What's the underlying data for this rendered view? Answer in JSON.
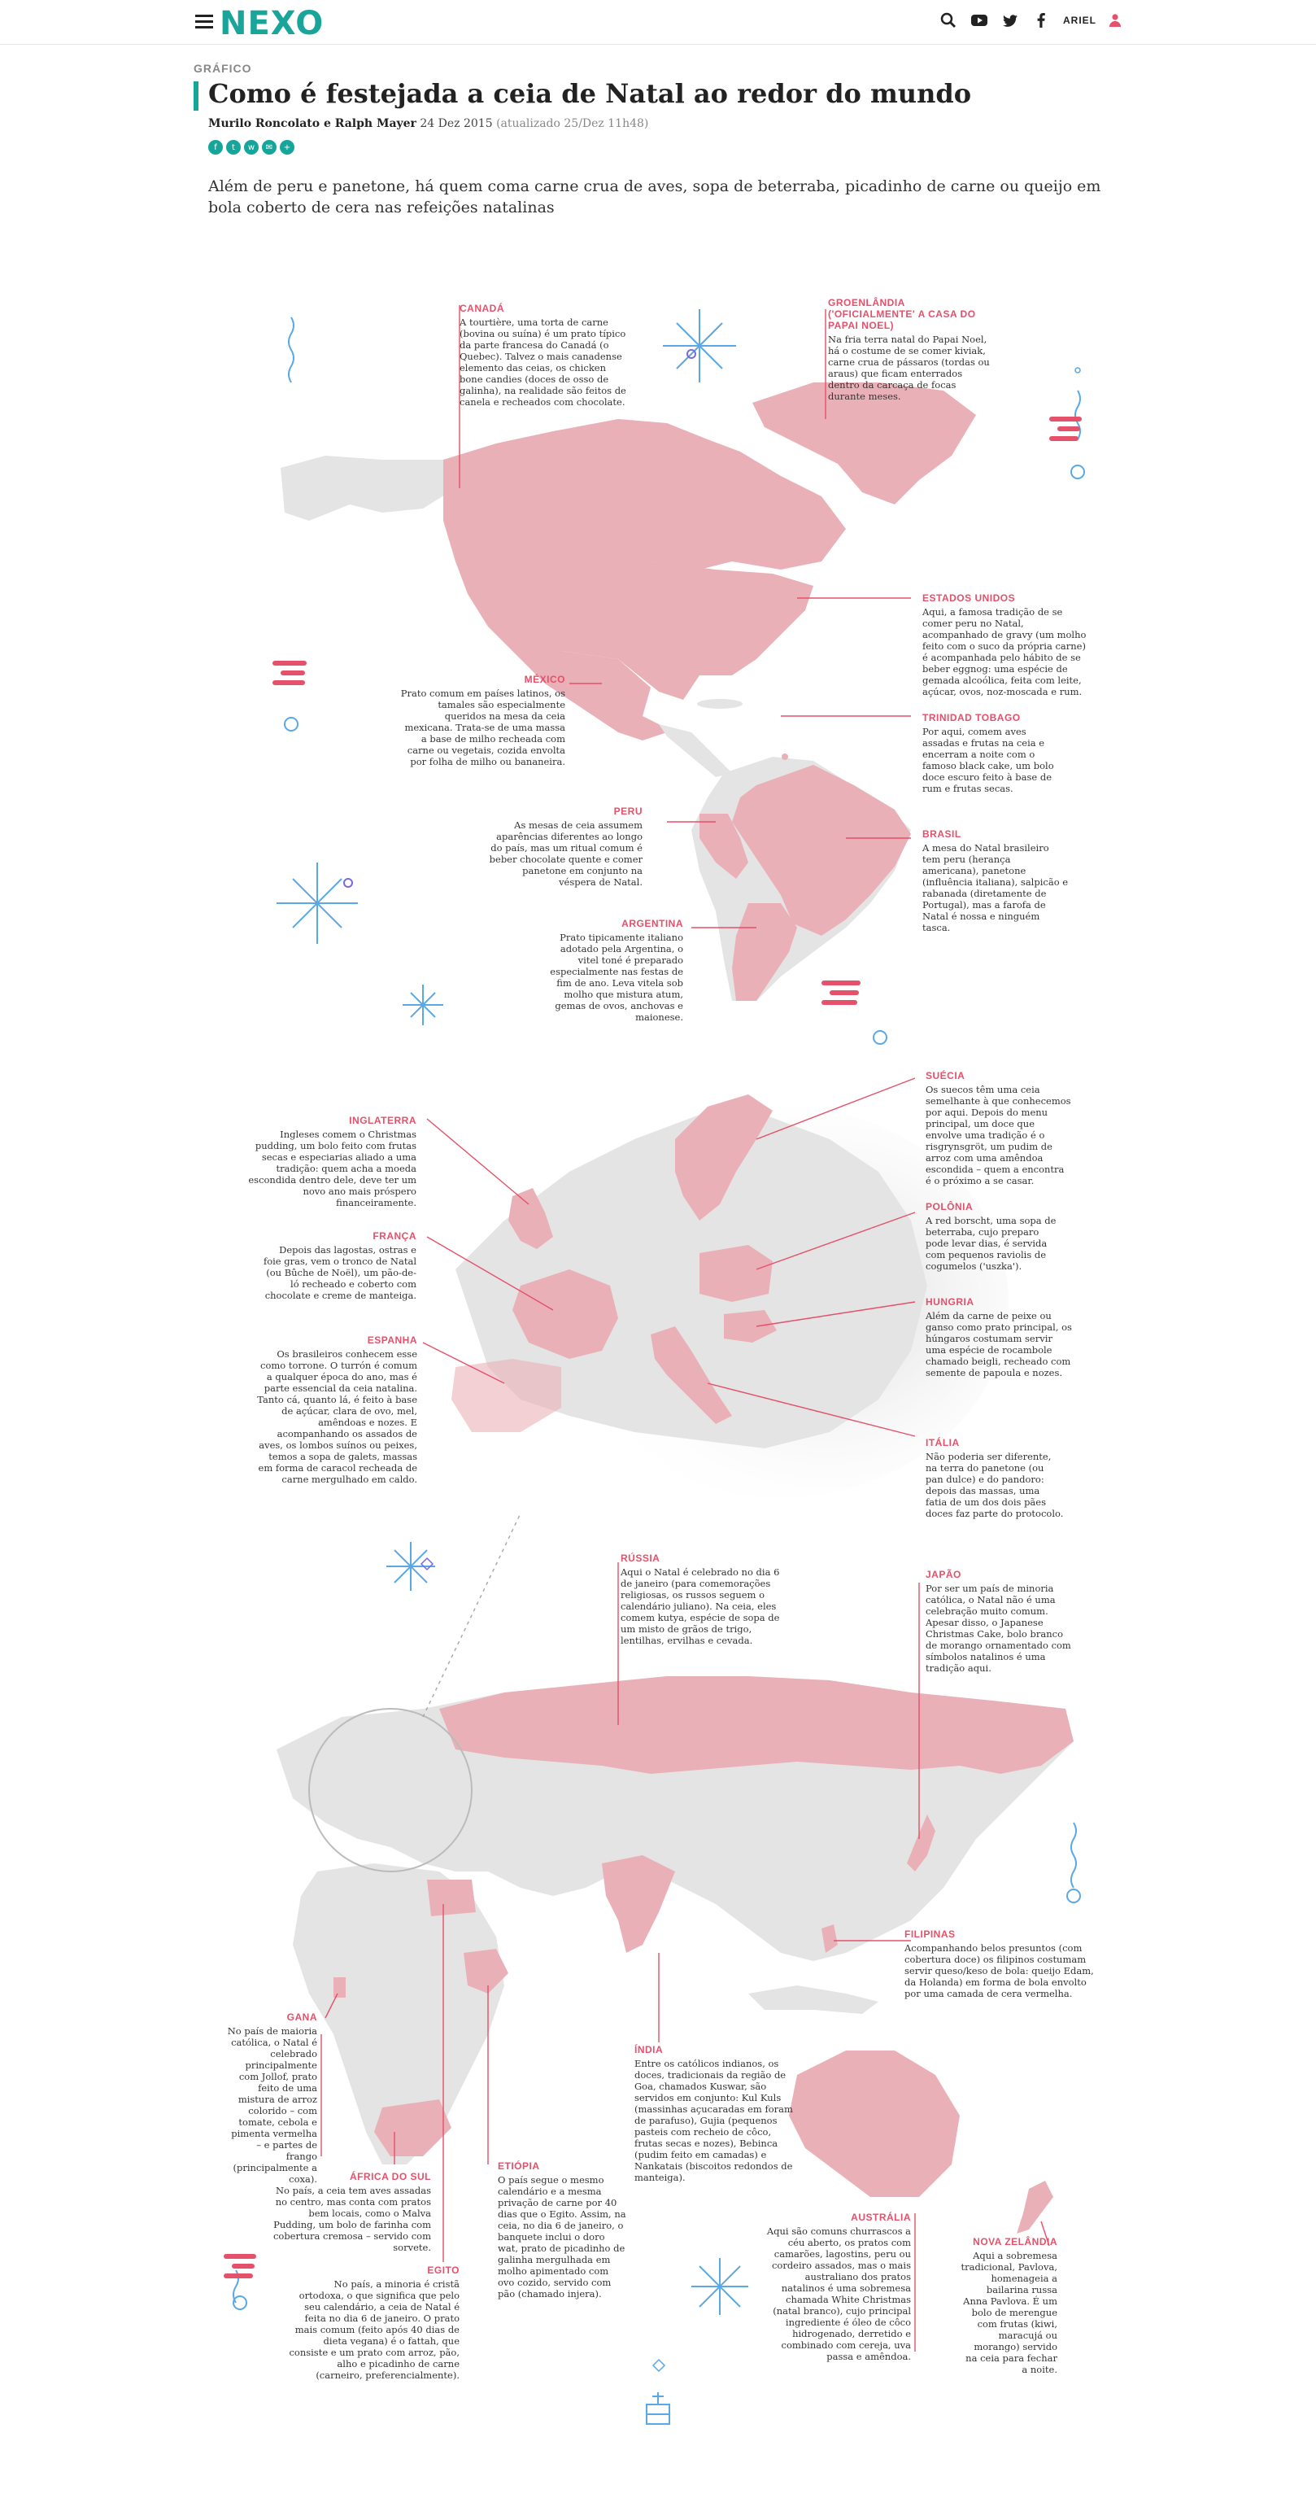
{
  "header": {
    "logo": "NEXO",
    "user_name": "ARIEL",
    "icons": [
      "menu-icon",
      "search-icon",
      "youtube-icon",
      "twitter-icon",
      "facebook-icon",
      "user-icon"
    ]
  },
  "article": {
    "section": "GRÁFICO",
    "title": "Como é festejada a ceia de Natal ao redor do mundo",
    "authors": "Murilo Roncolato e Ralph Mayer",
    "date": "24 Dez 2015",
    "updated": "(atualizado 25/Dez 11h48)",
    "share_icons": [
      "facebook-icon",
      "twitter-icon",
      "whatsapp-icon",
      "email-icon",
      "plus-icon"
    ],
    "lead": "Além de peru e panetone, há quem coma carne crua de aves, sopa de beterraba, picadinho de carne ou queijo em bola coberto de cera nas refeições natalinas"
  },
  "colors": {
    "accent": "#16a59a",
    "highlight": "#e5506a",
    "country_fill": "#eab0b7",
    "land": "#e4e4e4"
  },
  "notes": {
    "canada": {
      "title": "CANADÁ",
      "text": "A tourtière, uma torta de carne (bovina ou suína) é um prato típico da parte francesa do Canadá (o Quebec). Talvez o mais canadense elemento das ceias, os chicken bone candies (doces de osso de galinha), na realidade são feitos de canela e recheados com chocolate."
    },
    "greenland": {
      "title": "GROENLÂNDIA ('OFICIALMENTE' A CASA DO PAPAI NOEL)",
      "text": "Na fria terra natal do Papai Noel, há o costume de se comer kiviak, carne crua de pássaros (tordas ou araus) que ficam enterrados dentro da carcaça de focas durante meses."
    },
    "usa": {
      "title": "ESTADOS UNIDOS",
      "text": "Aqui, a famosa tradição de se comer peru no Natal, acompanhado de gravy (um molho feito com o suco da própria carne) é acompanhada pelo hábito de se beber eggnog: uma espécie de gemada alcoólica, feita com leite, açúcar, ovos, noz-moscada e rum."
    },
    "mexico": {
      "title": "MÉXICO",
      "text": "Prato comum em países latinos, os tamales são especialmente queridos na mesa da ceia mexicana. Trata-se de uma massa a base de milho recheada com carne ou vegetais, cozida envolta por folha de milho ou bananeira."
    },
    "trinidad": {
      "title": "TRINIDAD TOBAGO",
      "text": "Por aqui, comem aves assadas e frutas na ceia e encerram a noite com o famoso black cake, um bolo doce escuro feito à base de rum e frutas secas."
    },
    "peru": {
      "title": "PERU",
      "text": "As mesas de ceia assumem aparências diferentes ao longo do país, mas um ritual comum é beber chocolate quente e comer panetone em conjunto na véspera de Natal."
    },
    "brazil": {
      "title": "BRASIL",
      "text": "A mesa do Natal brasileiro tem peru (herança americana), panetone (influência italiana), salpicão e rabanada (diretamente de Portugal), mas a farofa de Natal é nossa e ninguém tasca."
    },
    "argentina": {
      "title": "ARGENTINA",
      "text": "Prato tipicamente italiano adotado pela Argentina, o vitel toné é preparado especialmente nas festas de fim de ano. Leva vitela sob molho que mistura atum, gemas de ovos, anchovas e maionese."
    },
    "england": {
      "title": "INGLATERRA",
      "text": "Ingleses comem o Christmas pudding, um bolo feito com frutas secas e especiarias aliado a uma tradição: quem acha a moeda escondida dentro dele, deve ter um novo ano mais próspero financeiramente."
    },
    "sweden": {
      "title": "SUÉCIA",
      "text": "Os suecos têm uma ceia semelhante à que conhecemos por aqui. Depois do menu principal, um doce que envolve uma tradição é o risgrynsgröt, um pudim de arroz com uma amêndoa escondida – quem a encontra é o próximo a se casar."
    },
    "france": {
      "title": "FRANÇA",
      "text": "Depois das lagostas, ostras e foie gras, vem o tronco de Natal (ou Bûche de Noël), um pão-de-ló recheado e coberto com chocolate e creme de manteiga."
    },
    "poland": {
      "title": "POLÔNIA",
      "text": "A red borscht, uma sopa de beterraba, cujo preparo pode levar dias, é servida com pequenos raviolis de cogumelos ('uszka')."
    },
    "hungary": {
      "title": "HUNGRIA",
      "text": "Além da carne de peixe ou ganso como prato principal, os húngaros costumam servir uma espécie de rocambole chamado beigli, recheado com semente de papoula e nozes."
    },
    "spain": {
      "title": "ESPANHA",
      "text": "Os brasileiros conhecem esse como torrone. O turrón é comum a qualquer época do ano, mas é parte essencial da ceia natalina. Tanto cá, quanto lá, é feito à base de açúcar, clara de ovo, mel, amêndoas e nozes. E acompanhando os assados de aves, os lombos suínos ou peixes, temos a sopa de galets, massas em forma de caracol recheada de carne mergulhado em caldo."
    },
    "italy": {
      "title": "ITÁLIA",
      "text": "Não poderia ser diferente, na terra do panetone (ou pan dulce) e do pandoro: depois das massas, uma fatia de um dos dois pães doces faz parte do protocolo."
    },
    "russia": {
      "title": "RÚSSIA",
      "text": "Aqui o Natal é celebrado no dia 6 de janeiro (para comemorações religiosas, os russos seguem o calendário juliano). Na ceia, eles comem kutya, espécie de sopa de um misto de grãos de trigo, lentilhas, ervilhas e cevada."
    },
    "japan": {
      "title": "JAPÃO",
      "text": "Por ser um país de minoria católica, o Natal não é uma celebração muito comum. Apesar disso, o Japanese Christmas Cake, bolo branco de morango ornamentado com símbolos natalinos é uma tradição aqui."
    },
    "philippines": {
      "title": "FILIPINAS",
      "text": "Acompanhando belos presuntos (com cobertura doce) os filipinos costumam servir queso/keso de bola: queijo Edam, da Holanda) em forma de bola envolto por uma camada de cera vermelha."
    },
    "ghana": {
      "title": "GANA",
      "text": "No país de maioria católica, o Natal é celebrado principalmente com Jollof, prato feito de uma mistura de arroz colorido – com tomate, cebola e pimenta vermelha – e partes de frango (principalmente a coxa)."
    },
    "india": {
      "title": "ÍNDIA",
      "text": "Entre os católicos indianos, os doces, tradicionais da região de Goa, chamados Kuswar, são servidos em conjunto: Kul Kuls (massinhas açucaradas em foram de parafuso), Gujia (pequenos pasteis com recheio de côco, frutas secas e nozes), Bebinca (pudim feito em camadas) e Nankatais (biscoitos redondos de manteiga)."
    },
    "south_africa": {
      "title": "ÁFRICA DO SUL",
      "text": "No país, a ceia tem aves assadas no centro, mas conta com pratos bem locais, como o Malva Pudding, um bolo de farinha com cobertura cremosa – servido com sorvete."
    },
    "ethiopia": {
      "title": "ETIÓPIA",
      "text": "O país segue o mesmo calendário e a mesma privação de carne por 40 dias que o Egito. Assim, na ceia, no dia 6 de janeiro, o banquete inclui o doro wat, prato de picadinho de galinha mergulhada em molho apimentado com ovo cozido, servido com pão (chamado injera)."
    },
    "australia": {
      "title": "AUSTRÁLIA",
      "text": "Aqui são comuns churrascos a céu aberto, os pratos com camarões, lagostins, peru ou cordeiro assados, mas o mais australiano dos pratos natalinos é uma sobremesa chamada White Christmas (natal branco), cujo principal ingrediente é óleo de côco hidrogenado, derretido e combinado com cereja, uva passa e amêndoa."
    },
    "new_zealand": {
      "title": "NOVA ZELÂNDIA",
      "text": "Aqui a sobremesa tradicional, Pavlova, homenageia a bailarina russa Anna Pavlova. É um bolo de merengue com frutas (kiwi, maracujá ou morango) servido na ceia para fechar a noite."
    },
    "egypt": {
      "title": "EGITO",
      "text": "No país, a minoria é cristã ortodoxa, o que significa que pelo seu calendário, a ceia de Natal é feita no dia 6 de janeiro. O prato mais comum (feito após 40 dias de dieta vegana) é o fattah, que consiste e um prato com arroz, pão, alho e picadinho de carne (carneiro, preferencialmente)."
    }
  }
}
